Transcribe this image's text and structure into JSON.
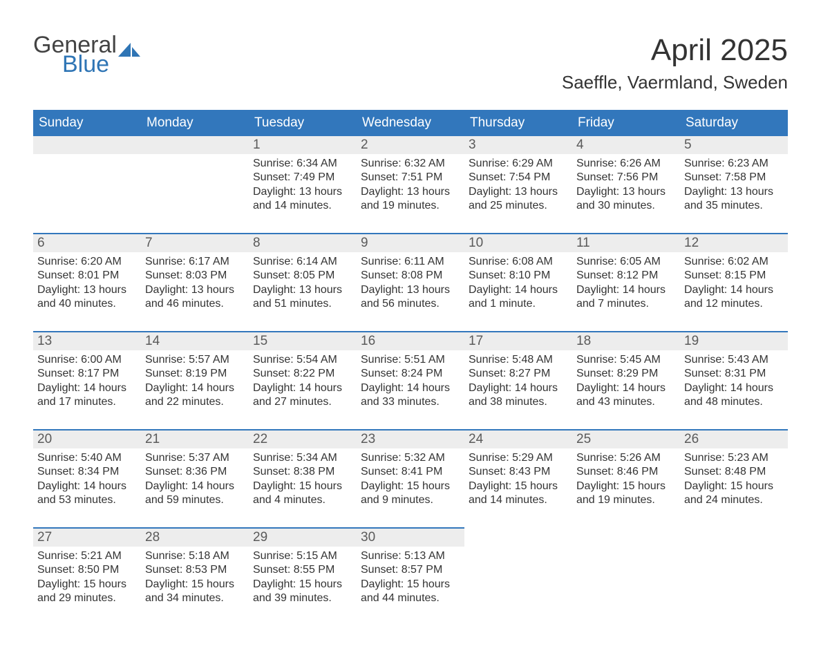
{
  "logo": {
    "general": "General",
    "blue": "Blue",
    "sail_color": "#2f75b5"
  },
  "title": "April 2025",
  "location": "Saeffle, Vaermland, Sweden",
  "colors": {
    "header_bg": "#3277bc",
    "header_text": "#ffffff",
    "daynum_bg": "#ededed",
    "daynum_text": "#5a5a5a",
    "body_text": "#333333",
    "row_divider": "#3277bc",
    "page_bg": "#ffffff"
  },
  "typography": {
    "title_fontsize": 44,
    "location_fontsize": 26,
    "weekday_fontsize": 19,
    "daynum_fontsize": 19,
    "body_fontsize": 16,
    "font_family": "Arial"
  },
  "weekdays": [
    "Sunday",
    "Monday",
    "Tuesday",
    "Wednesday",
    "Thursday",
    "Friday",
    "Saturday"
  ],
  "weeks": [
    [
      null,
      null,
      {
        "n": "1",
        "sunrise": "6:34 AM",
        "sunset": "7:49 PM",
        "daylight": "13 hours and 14 minutes."
      },
      {
        "n": "2",
        "sunrise": "6:32 AM",
        "sunset": "7:51 PM",
        "daylight": "13 hours and 19 minutes."
      },
      {
        "n": "3",
        "sunrise": "6:29 AM",
        "sunset": "7:54 PM",
        "daylight": "13 hours and 25 minutes."
      },
      {
        "n": "4",
        "sunrise": "6:26 AM",
        "sunset": "7:56 PM",
        "daylight": "13 hours and 30 minutes."
      },
      {
        "n": "5",
        "sunrise": "6:23 AM",
        "sunset": "7:58 PM",
        "daylight": "13 hours and 35 minutes."
      }
    ],
    [
      {
        "n": "6",
        "sunrise": "6:20 AM",
        "sunset": "8:01 PM",
        "daylight": "13 hours and 40 minutes."
      },
      {
        "n": "7",
        "sunrise": "6:17 AM",
        "sunset": "8:03 PM",
        "daylight": "13 hours and 46 minutes."
      },
      {
        "n": "8",
        "sunrise": "6:14 AM",
        "sunset": "8:05 PM",
        "daylight": "13 hours and 51 minutes."
      },
      {
        "n": "9",
        "sunrise": "6:11 AM",
        "sunset": "8:08 PM",
        "daylight": "13 hours and 56 minutes."
      },
      {
        "n": "10",
        "sunrise": "6:08 AM",
        "sunset": "8:10 PM",
        "daylight": "14 hours and 1 minute."
      },
      {
        "n": "11",
        "sunrise": "6:05 AM",
        "sunset": "8:12 PM",
        "daylight": "14 hours and 7 minutes."
      },
      {
        "n": "12",
        "sunrise": "6:02 AM",
        "sunset": "8:15 PM",
        "daylight": "14 hours and 12 minutes."
      }
    ],
    [
      {
        "n": "13",
        "sunrise": "6:00 AM",
        "sunset": "8:17 PM",
        "daylight": "14 hours and 17 minutes."
      },
      {
        "n": "14",
        "sunrise": "5:57 AM",
        "sunset": "8:19 PM",
        "daylight": "14 hours and 22 minutes."
      },
      {
        "n": "15",
        "sunrise": "5:54 AM",
        "sunset": "8:22 PM",
        "daylight": "14 hours and 27 minutes."
      },
      {
        "n": "16",
        "sunrise": "5:51 AM",
        "sunset": "8:24 PM",
        "daylight": "14 hours and 33 minutes."
      },
      {
        "n": "17",
        "sunrise": "5:48 AM",
        "sunset": "8:27 PM",
        "daylight": "14 hours and 38 minutes."
      },
      {
        "n": "18",
        "sunrise": "5:45 AM",
        "sunset": "8:29 PM",
        "daylight": "14 hours and 43 minutes."
      },
      {
        "n": "19",
        "sunrise": "5:43 AM",
        "sunset": "8:31 PM",
        "daylight": "14 hours and 48 minutes."
      }
    ],
    [
      {
        "n": "20",
        "sunrise": "5:40 AM",
        "sunset": "8:34 PM",
        "daylight": "14 hours and 53 minutes."
      },
      {
        "n": "21",
        "sunrise": "5:37 AM",
        "sunset": "8:36 PM",
        "daylight": "14 hours and 59 minutes."
      },
      {
        "n": "22",
        "sunrise": "5:34 AM",
        "sunset": "8:38 PM",
        "daylight": "15 hours and 4 minutes."
      },
      {
        "n": "23",
        "sunrise": "5:32 AM",
        "sunset": "8:41 PM",
        "daylight": "15 hours and 9 minutes."
      },
      {
        "n": "24",
        "sunrise": "5:29 AM",
        "sunset": "8:43 PM",
        "daylight": "15 hours and 14 minutes."
      },
      {
        "n": "25",
        "sunrise": "5:26 AM",
        "sunset": "8:46 PM",
        "daylight": "15 hours and 19 minutes."
      },
      {
        "n": "26",
        "sunrise": "5:23 AM",
        "sunset": "8:48 PM",
        "daylight": "15 hours and 24 minutes."
      }
    ],
    [
      {
        "n": "27",
        "sunrise": "5:21 AM",
        "sunset": "8:50 PM",
        "daylight": "15 hours and 29 minutes."
      },
      {
        "n": "28",
        "sunrise": "5:18 AM",
        "sunset": "8:53 PM",
        "daylight": "15 hours and 34 minutes."
      },
      {
        "n": "29",
        "sunrise": "5:15 AM",
        "sunset": "8:55 PM",
        "daylight": "15 hours and 39 minutes."
      },
      {
        "n": "30",
        "sunrise": "5:13 AM",
        "sunset": "8:57 PM",
        "daylight": "15 hours and 44 minutes."
      },
      null,
      null,
      null
    ]
  ],
  "labels": {
    "sunrise": "Sunrise:",
    "sunset": "Sunset:",
    "daylight": "Daylight:"
  }
}
